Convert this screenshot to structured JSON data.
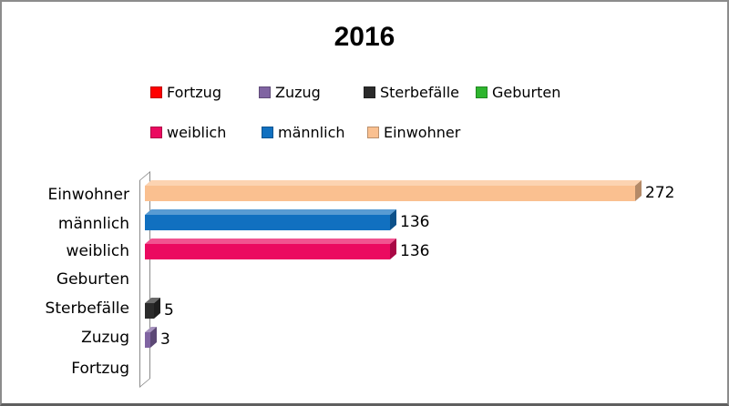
{
  "title": "2016",
  "legend": {
    "rows": [
      [
        {
          "label": "Fortzug",
          "color": "#FF0000"
        },
        {
          "label": "Zuzug",
          "color": "#8064A2"
        },
        {
          "label": "Sterbefälle",
          "color": "#2B2B2B"
        },
        {
          "label": "Geburten",
          "color": "#2EB52E"
        }
      ],
      [
        {
          "label": "weiblich",
          "color": "#EB0A60"
        },
        {
          "label": "männlich",
          "color": "#1170C0"
        },
        {
          "label": "Einwohner",
          "color": "#FAC090"
        }
      ]
    ]
  },
  "chart_data": {
    "type": "bar",
    "orientation": "horizontal",
    "title": "2016",
    "categories": [
      "Einwohner",
      "männlich",
      "weiblich",
      "Geburten",
      "Sterbefälle",
      "Zuzug",
      "Fortzug"
    ],
    "values": [
      272,
      136,
      136,
      0,
      5,
      3,
      0
    ],
    "data_labels": [
      "272",
      "136",
      "136",
      "",
      "5",
      "3",
      ""
    ],
    "colors": [
      "#FAC090",
      "#1170C0",
      "#EB0A60",
      "#2EB52E",
      "#2B2B2B",
      "#8064A2",
      "#FF0000"
    ],
    "legend_entries_row1": [
      "Fortzug",
      "Zuzug",
      "Sterbefälle",
      "Geburten"
    ],
    "legend_entries_row2": [
      "weiblich",
      "männlich",
      "Einwohner"
    ],
    "legend_position": "top",
    "value_axis_visible": false,
    "gridlines": false,
    "style": "3d",
    "xlim": [
      0,
      280
    ]
  }
}
